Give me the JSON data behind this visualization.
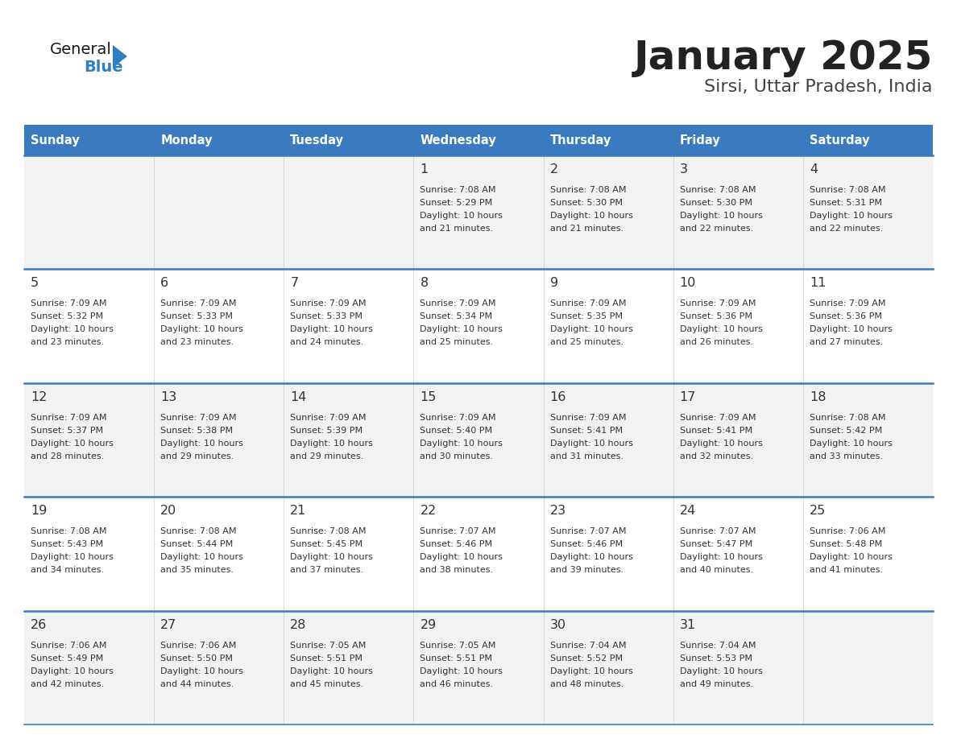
{
  "title": "January 2025",
  "subtitle": "Sirsi, Uttar Pradesh, India",
  "days_of_week": [
    "Sunday",
    "Monday",
    "Tuesday",
    "Wednesday",
    "Thursday",
    "Friday",
    "Saturday"
  ],
  "header_bg_color": "#3a7bbf",
  "header_text_color": "#ffffff",
  "row_bg_even": "#f2f2f2",
  "row_bg_odd": "#ffffff",
  "separator_color": "#3a7bbf",
  "day_number_color": "#333333",
  "info_text_color": "#333333",
  "title_color": "#222222",
  "subtitle_color": "#444444",
  "logo_general_color": "#1a1a1a",
  "logo_blue_color": "#2f7fc1",
  "calendar_data": [
    {
      "day": 1,
      "week_row": 0,
      "week_col": 3,
      "sunrise": "7:08 AM",
      "sunset": "5:29 PM",
      "daylight_h": "10 hours",
      "daylight_m": "21 minutes"
    },
    {
      "day": 2,
      "week_row": 0,
      "week_col": 4,
      "sunrise": "7:08 AM",
      "sunset": "5:30 PM",
      "daylight_h": "10 hours",
      "daylight_m": "21 minutes"
    },
    {
      "day": 3,
      "week_row": 0,
      "week_col": 5,
      "sunrise": "7:08 AM",
      "sunset": "5:30 PM",
      "daylight_h": "10 hours",
      "daylight_m": "22 minutes"
    },
    {
      "day": 4,
      "week_row": 0,
      "week_col": 6,
      "sunrise": "7:08 AM",
      "sunset": "5:31 PM",
      "daylight_h": "10 hours",
      "daylight_m": "22 minutes"
    },
    {
      "day": 5,
      "week_row": 1,
      "week_col": 0,
      "sunrise": "7:09 AM",
      "sunset": "5:32 PM",
      "daylight_h": "10 hours",
      "daylight_m": "23 minutes"
    },
    {
      "day": 6,
      "week_row": 1,
      "week_col": 1,
      "sunrise": "7:09 AM",
      "sunset": "5:33 PM",
      "daylight_h": "10 hours",
      "daylight_m": "23 minutes"
    },
    {
      "day": 7,
      "week_row": 1,
      "week_col": 2,
      "sunrise": "7:09 AM",
      "sunset": "5:33 PM",
      "daylight_h": "10 hours",
      "daylight_m": "24 minutes"
    },
    {
      "day": 8,
      "week_row": 1,
      "week_col": 3,
      "sunrise": "7:09 AM",
      "sunset": "5:34 PM",
      "daylight_h": "10 hours",
      "daylight_m": "25 minutes"
    },
    {
      "day": 9,
      "week_row": 1,
      "week_col": 4,
      "sunrise": "7:09 AM",
      "sunset": "5:35 PM",
      "daylight_h": "10 hours",
      "daylight_m": "25 minutes"
    },
    {
      "day": 10,
      "week_row": 1,
      "week_col": 5,
      "sunrise": "7:09 AM",
      "sunset": "5:36 PM",
      "daylight_h": "10 hours",
      "daylight_m": "26 minutes"
    },
    {
      "day": 11,
      "week_row": 1,
      "week_col": 6,
      "sunrise": "7:09 AM",
      "sunset": "5:36 PM",
      "daylight_h": "10 hours",
      "daylight_m": "27 minutes"
    },
    {
      "day": 12,
      "week_row": 2,
      "week_col": 0,
      "sunrise": "7:09 AM",
      "sunset": "5:37 PM",
      "daylight_h": "10 hours",
      "daylight_m": "28 minutes"
    },
    {
      "day": 13,
      "week_row": 2,
      "week_col": 1,
      "sunrise": "7:09 AM",
      "sunset": "5:38 PM",
      "daylight_h": "10 hours",
      "daylight_m": "29 minutes"
    },
    {
      "day": 14,
      "week_row": 2,
      "week_col": 2,
      "sunrise": "7:09 AM",
      "sunset": "5:39 PM",
      "daylight_h": "10 hours",
      "daylight_m": "29 minutes"
    },
    {
      "day": 15,
      "week_row": 2,
      "week_col": 3,
      "sunrise": "7:09 AM",
      "sunset": "5:40 PM",
      "daylight_h": "10 hours",
      "daylight_m": "30 minutes"
    },
    {
      "day": 16,
      "week_row": 2,
      "week_col": 4,
      "sunrise": "7:09 AM",
      "sunset": "5:41 PM",
      "daylight_h": "10 hours",
      "daylight_m": "31 minutes"
    },
    {
      "day": 17,
      "week_row": 2,
      "week_col": 5,
      "sunrise": "7:09 AM",
      "sunset": "5:41 PM",
      "daylight_h": "10 hours",
      "daylight_m": "32 minutes"
    },
    {
      "day": 18,
      "week_row": 2,
      "week_col": 6,
      "sunrise": "7:08 AM",
      "sunset": "5:42 PM",
      "daylight_h": "10 hours",
      "daylight_m": "33 minutes"
    },
    {
      "day": 19,
      "week_row": 3,
      "week_col": 0,
      "sunrise": "7:08 AM",
      "sunset": "5:43 PM",
      "daylight_h": "10 hours",
      "daylight_m": "34 minutes"
    },
    {
      "day": 20,
      "week_row": 3,
      "week_col": 1,
      "sunrise": "7:08 AM",
      "sunset": "5:44 PM",
      "daylight_h": "10 hours",
      "daylight_m": "35 minutes"
    },
    {
      "day": 21,
      "week_row": 3,
      "week_col": 2,
      "sunrise": "7:08 AM",
      "sunset": "5:45 PM",
      "daylight_h": "10 hours",
      "daylight_m": "37 minutes"
    },
    {
      "day": 22,
      "week_row": 3,
      "week_col": 3,
      "sunrise": "7:07 AM",
      "sunset": "5:46 PM",
      "daylight_h": "10 hours",
      "daylight_m": "38 minutes"
    },
    {
      "day": 23,
      "week_row": 3,
      "week_col": 4,
      "sunrise": "7:07 AM",
      "sunset": "5:46 PM",
      "daylight_h": "10 hours",
      "daylight_m": "39 minutes"
    },
    {
      "day": 24,
      "week_row": 3,
      "week_col": 5,
      "sunrise": "7:07 AM",
      "sunset": "5:47 PM",
      "daylight_h": "10 hours",
      "daylight_m": "40 minutes"
    },
    {
      "day": 25,
      "week_row": 3,
      "week_col": 6,
      "sunrise": "7:06 AM",
      "sunset": "5:48 PM",
      "daylight_h": "10 hours",
      "daylight_m": "41 minutes"
    },
    {
      "day": 26,
      "week_row": 4,
      "week_col": 0,
      "sunrise": "7:06 AM",
      "sunset": "5:49 PM",
      "daylight_h": "10 hours",
      "daylight_m": "42 minutes"
    },
    {
      "day": 27,
      "week_row": 4,
      "week_col": 1,
      "sunrise": "7:06 AM",
      "sunset": "5:50 PM",
      "daylight_h": "10 hours",
      "daylight_m": "44 minutes"
    },
    {
      "day": 28,
      "week_row": 4,
      "week_col": 2,
      "sunrise": "7:05 AM",
      "sunset": "5:51 PM",
      "daylight_h": "10 hours",
      "daylight_m": "45 minutes"
    },
    {
      "day": 29,
      "week_row": 4,
      "week_col": 3,
      "sunrise": "7:05 AM",
      "sunset": "5:51 PM",
      "daylight_h": "10 hours",
      "daylight_m": "46 minutes"
    },
    {
      "day": 30,
      "week_row": 4,
      "week_col": 4,
      "sunrise": "7:04 AM",
      "sunset": "5:52 PM",
      "daylight_h": "10 hours",
      "daylight_m": "48 minutes"
    },
    {
      "day": 31,
      "week_row": 4,
      "week_col": 5,
      "sunrise": "7:04 AM",
      "sunset": "5:53 PM",
      "daylight_h": "10 hours",
      "daylight_m": "49 minutes"
    }
  ]
}
